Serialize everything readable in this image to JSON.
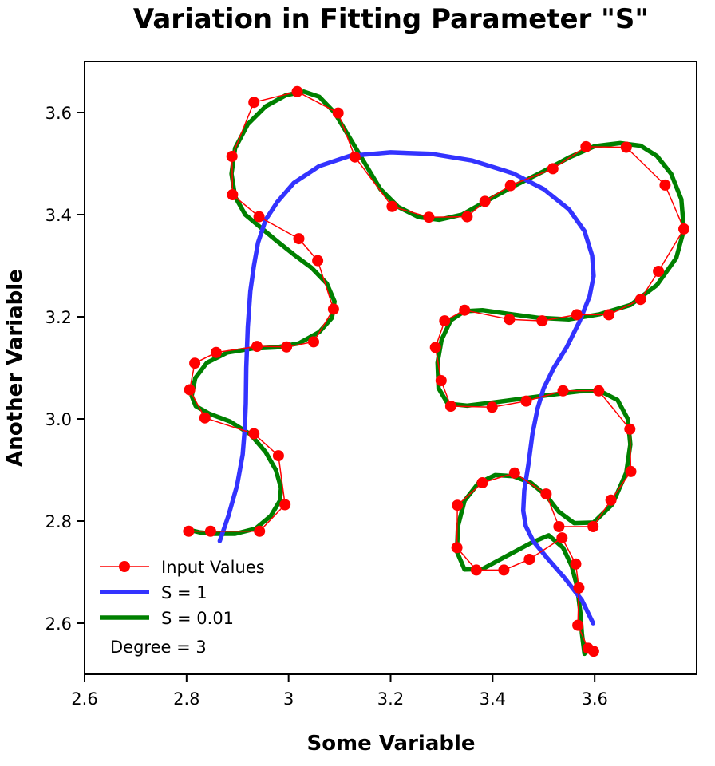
{
  "chart_data": {
    "type": "line",
    "title": "Variation in Fitting Parameter \"S\"",
    "xlabel": "Some Variable",
    "ylabel": "Another Variable",
    "xlim": [
      2.6,
      3.8
    ],
    "ylim": [
      2.5,
      3.7
    ],
    "x_ticks": [
      2.6,
      2.8,
      3.0,
      3.2,
      3.4,
      3.6
    ],
    "x_tick_labels": [
      "2.6",
      "2.8",
      "3",
      "3.2",
      "3.4",
      "3.6"
    ],
    "y_ticks": [
      2.6,
      2.8,
      3.0,
      3.2,
      3.4,
      3.6
    ],
    "y_tick_labels": [
      "2.6",
      "2.8",
      "3.0",
      "3.2",
      "3.4",
      "3.6"
    ],
    "grid": false,
    "legend_position": "bottom-left",
    "annotation": "Degree = 3",
    "series": [
      {
        "name": "Input Values",
        "color": "#ff0000",
        "style": "line-markers",
        "x": [
          3.598,
          3.587,
          3.567,
          3.569,
          3.563,
          3.536,
          3.472,
          3.422,
          3.368,
          3.33,
          3.331,
          3.38,
          3.443,
          3.505,
          3.53,
          3.597,
          3.632,
          3.671,
          3.669,
          3.608,
          3.538,
          3.466,
          3.399,
          3.318,
          3.299,
          3.288,
          3.306,
          3.345,
          3.433,
          3.497,
          3.565,
          3.628,
          3.69,
          3.725,
          3.775,
          3.738,
          3.662,
          3.583,
          3.518,
          3.435,
          3.385,
          3.35,
          3.275,
          3.203,
          3.13,
          3.097,
          3.017,
          2.932,
          2.889,
          2.89,
          2.942,
          3.02,
          3.057,
          3.088,
          3.049,
          2.996,
          2.938,
          2.858,
          2.816,
          2.806,
          2.836,
          2.932,
          2.98,
          2.993,
          2.943,
          2.847,
          2.804
        ],
        "y": [
          2.545,
          2.551,
          2.596,
          2.669,
          2.716,
          2.767,
          2.725,
          2.704,
          2.704,
          2.748,
          2.831,
          2.875,
          2.894,
          2.853,
          2.789,
          2.789,
          2.841,
          2.897,
          2.98,
          3.055,
          3.055,
          3.035,
          3.023,
          3.025,
          3.075,
          3.14,
          3.192,
          3.213,
          3.195,
          3.192,
          3.204,
          3.204,
          3.234,
          3.289,
          3.372,
          3.458,
          3.532,
          3.533,
          3.49,
          3.457,
          3.426,
          3.396,
          3.395,
          3.416,
          3.513,
          3.599,
          3.641,
          3.62,
          3.514,
          3.439,
          3.396,
          3.353,
          3.31,
          3.215,
          3.151,
          3.141,
          3.142,
          3.13,
          3.109,
          3.057,
          3.002,
          2.971,
          2.928,
          2.832,
          2.78,
          2.78,
          2.78
        ]
      },
      {
        "name": "S = 1",
        "color": "#3333ff",
        "style": "line",
        "x": [
          2.865,
          2.882,
          2.899,
          2.91,
          2.914,
          2.916,
          2.917,
          2.92,
          2.925,
          2.932,
          2.94,
          2.955,
          2.978,
          3.01,
          3.06,
          3.12,
          3.2,
          3.28,
          3.36,
          3.44,
          3.5,
          3.55,
          3.58,
          3.595,
          3.598,
          3.59,
          3.57,
          3.545,
          3.52,
          3.5,
          3.488,
          3.478,
          3.47,
          3.462,
          3.46,
          3.465,
          3.48,
          3.505,
          3.54,
          3.575,
          3.597
        ],
        "y": [
          2.761,
          2.81,
          2.87,
          2.93,
          2.98,
          3.03,
          3.1,
          3.18,
          3.25,
          3.3,
          3.345,
          3.39,
          3.425,
          3.462,
          3.495,
          3.515,
          3.522,
          3.519,
          3.506,
          3.481,
          3.45,
          3.41,
          3.368,
          3.32,
          3.28,
          3.24,
          3.19,
          3.14,
          3.1,
          3.06,
          3.02,
          2.97,
          2.91,
          2.86,
          2.82,
          2.79,
          2.76,
          2.73,
          2.69,
          2.645,
          2.6
        ]
      },
      {
        "name": "S = 0.01",
        "color": "#008000",
        "style": "line",
        "x": [
          3.58,
          3.575,
          3.572,
          3.566,
          3.555,
          3.538,
          3.51,
          3.475,
          3.43,
          3.38,
          3.345,
          3.33,
          3.332,
          3.345,
          3.372,
          3.405,
          3.44,
          3.475,
          3.505,
          3.53,
          3.56,
          3.598,
          3.635,
          3.662,
          3.67,
          3.665,
          3.645,
          3.61,
          3.57,
          3.52,
          3.46,
          3.4,
          3.35,
          3.312,
          3.294,
          3.292,
          3.3,
          3.318,
          3.345,
          3.38,
          3.43,
          3.49,
          3.55,
          3.61,
          3.67,
          3.722,
          3.76,
          3.775,
          3.77,
          3.75,
          3.722,
          3.69,
          3.65,
          3.6,
          3.55,
          3.5,
          3.44,
          3.385,
          3.34,
          3.295,
          3.255,
          3.215,
          3.18,
          3.15,
          3.12,
          3.09,
          3.06,
          3.03,
          2.995,
          2.955,
          2.92,
          2.895,
          2.888,
          2.895,
          2.915,
          2.945,
          2.975,
          3.01,
          3.045,
          3.075,
          3.09,
          3.085,
          3.06,
          3.02,
          2.975,
          2.93,
          2.88,
          2.84,
          2.817,
          2.81,
          2.818,
          2.845,
          2.885,
          2.925,
          2.955,
          2.975,
          2.985,
          2.983,
          2.965,
          2.935,
          2.895,
          2.855,
          2.825,
          2.808
        ],
        "y": [
          2.54,
          2.58,
          2.62,
          2.67,
          2.712,
          2.748,
          2.772,
          2.757,
          2.733,
          2.706,
          2.705,
          2.74,
          2.79,
          2.84,
          2.874,
          2.89,
          2.888,
          2.875,
          2.85,
          2.818,
          2.796,
          2.797,
          2.833,
          2.895,
          2.95,
          3.0,
          3.037,
          3.055,
          3.054,
          3.048,
          3.04,
          3.032,
          3.026,
          3.03,
          3.06,
          3.11,
          3.155,
          3.193,
          3.211,
          3.213,
          3.206,
          3.198,
          3.195,
          3.205,
          3.223,
          3.262,
          3.315,
          3.37,
          3.43,
          3.48,
          3.515,
          3.535,
          3.54,
          3.534,
          3.512,
          3.485,
          3.455,
          3.425,
          3.4,
          3.39,
          3.395,
          3.415,
          3.45,
          3.5,
          3.55,
          3.6,
          3.631,
          3.641,
          3.634,
          3.612,
          3.577,
          3.53,
          3.48,
          3.435,
          3.4,
          3.375,
          3.35,
          3.322,
          3.296,
          3.265,
          3.23,
          3.198,
          3.17,
          3.148,
          3.14,
          3.138,
          3.13,
          3.11,
          3.08,
          3.045,
          3.025,
          3.01,
          2.995,
          2.97,
          2.935,
          2.9,
          2.865,
          2.84,
          2.81,
          2.785,
          2.775,
          2.775,
          2.778,
          2.782
        ]
      }
    ]
  }
}
